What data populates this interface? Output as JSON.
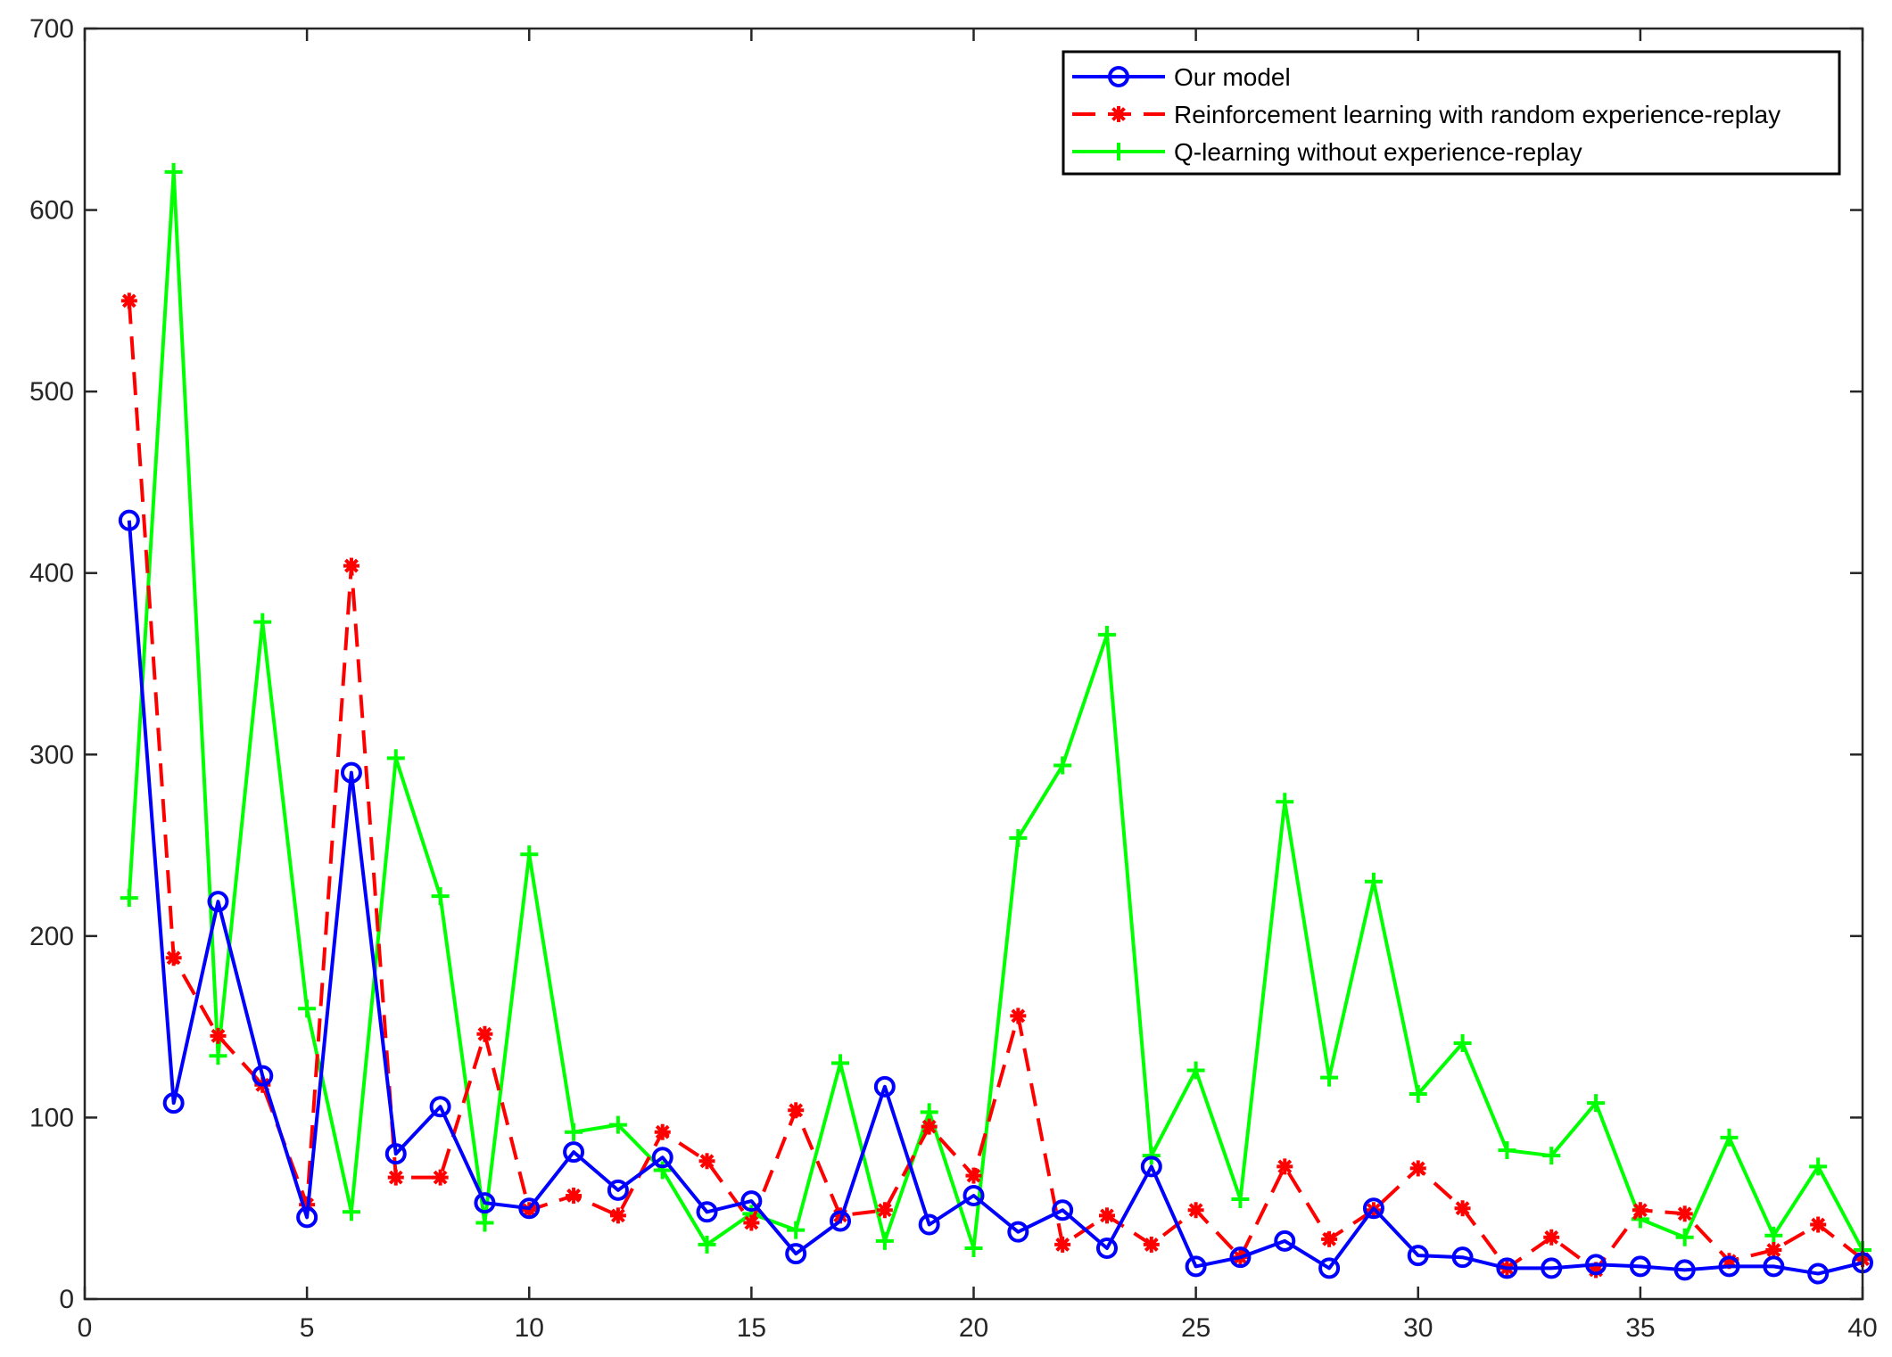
{
  "chart_data": {
    "type": "line",
    "title": "",
    "xlabel": "",
    "ylabel": "",
    "xlim": [
      0,
      40
    ],
    "ylim": [
      0,
      700
    ],
    "xticks": [
      0,
      5,
      10,
      15,
      20,
      25,
      30,
      35,
      40
    ],
    "yticks": [
      0,
      100,
      200,
      300,
      400,
      500,
      600,
      700
    ],
    "xtick_labels": [
      "0",
      "5",
      "10",
      "15",
      "20",
      "25",
      "30",
      "35",
      "40"
    ],
    "ytick_labels": [
      "0",
      "100",
      "200",
      "300",
      "400",
      "500",
      "600",
      "700"
    ],
    "grid": false,
    "legend_position": "top-right",
    "x": [
      1,
      2,
      3,
      4,
      5,
      6,
      7,
      8,
      9,
      10,
      11,
      12,
      13,
      14,
      15,
      16,
      17,
      18,
      19,
      20,
      21,
      22,
      23,
      24,
      25,
      26,
      27,
      28,
      29,
      30,
      31,
      32,
      33,
      34,
      35,
      36,
      37,
      38,
      39,
      40
    ],
    "series": [
      {
        "name": "Our model",
        "color": "#0000ff",
        "marker": "circle",
        "line_style": "solid",
        "values": [
          429,
          108,
          219,
          123,
          45,
          290,
          80,
          106,
          53,
          50,
          81,
          60,
          78,
          48,
          54,
          25,
          43,
          117,
          41,
          57,
          37,
          49,
          28,
          73,
          18,
          23,
          32,
          17,
          50,
          24,
          23,
          17,
          17,
          19,
          18,
          16,
          18,
          18,
          14,
          20
        ]
      },
      {
        "name": "Reinforcement learning with random experience-replay",
        "color": "#ff0000",
        "marker": "asterisk",
        "line_style": "dashed",
        "values": [
          550,
          188,
          145,
          118,
          52,
          404,
          67,
          67,
          146,
          49,
          57,
          46,
          92,
          76,
          42,
          104,
          46,
          49,
          95,
          68,
          156,
          30,
          46,
          30,
          49,
          23,
          73,
          33,
          49,
          72,
          50,
          17,
          34,
          16,
          49,
          47,
          21,
          27,
          41,
          22
        ]
      },
      {
        "name": "Q-learning without experience-replay",
        "color": "#00ff00",
        "marker": "plus",
        "line_style": "solid",
        "values": [
          221,
          621,
          134,
          373,
          160,
          48,
          298,
          222,
          42,
          245,
          92,
          96,
          71,
          30,
          47,
          38,
          130,
          32,
          103,
          28,
          254,
          294,
          366,
          79,
          126,
          55,
          274,
          122,
          230,
          113,
          141,
          82,
          79,
          108,
          44,
          34,
          89,
          35,
          73,
          27
        ]
      }
    ]
  },
  "colors": {
    "axis": "#262626",
    "background": "#ffffff"
  }
}
